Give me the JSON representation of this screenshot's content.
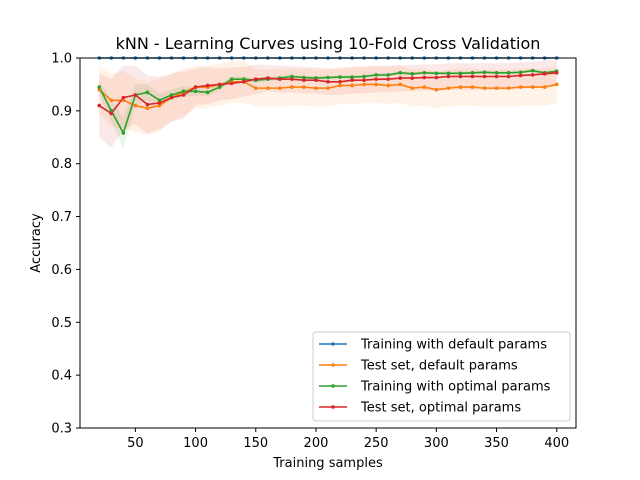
{
  "chart_data": {
    "type": "line",
    "title": "kNN - Learning Curves using 10-Fold Cross Validation",
    "xlabel": "Training samples",
    "ylabel": "Accuracy",
    "xlim": [
      4,
      416
    ],
    "ylim": [
      0.3,
      1.0
    ],
    "xticks": [
      50,
      100,
      150,
      200,
      250,
      300,
      350,
      400
    ],
    "yticks": [
      0.3,
      0.4,
      0.5,
      0.6,
      0.7,
      0.8,
      0.9,
      1.0
    ],
    "xtick_labels": [
      "50",
      "100",
      "150",
      "200",
      "250",
      "300",
      "350",
      "400"
    ],
    "ytick_labels": [
      "0.3",
      "0.4",
      "0.5",
      "0.6",
      "0.7",
      "0.8",
      "0.9",
      "1.0"
    ],
    "legend_position": "lower-right",
    "x": [
      20,
      30,
      40,
      50,
      60,
      70,
      80,
      90,
      100,
      110,
      120,
      130,
      140,
      150,
      160,
      170,
      180,
      190,
      200,
      210,
      220,
      230,
      240,
      250,
      260,
      270,
      280,
      290,
      300,
      310,
      320,
      330,
      340,
      350,
      360,
      370,
      380,
      390,
      400
    ],
    "series": [
      {
        "name": "Training with default params",
        "color": "#1f77b4",
        "values": [
          1.0,
          1.0,
          1.0,
          1.0,
          1.0,
          1.0,
          1.0,
          1.0,
          1.0,
          1.0,
          1.0,
          1.0,
          1.0,
          1.0,
          1.0,
          1.0,
          1.0,
          1.0,
          1.0,
          1.0,
          1.0,
          1.0,
          1.0,
          1.0,
          1.0,
          1.0,
          1.0,
          1.0,
          1.0,
          1.0,
          1.0,
          1.0,
          1.0,
          1.0,
          1.0,
          1.0,
          1.0,
          1.0,
          1.0
        ],
        "band": [
          0,
          0,
          0,
          0,
          0,
          0,
          0,
          0,
          0,
          0,
          0,
          0,
          0,
          0,
          0,
          0,
          0,
          0,
          0,
          0,
          0,
          0,
          0,
          0,
          0,
          0,
          0,
          0,
          0,
          0,
          0,
          0,
          0,
          0,
          0,
          0,
          0,
          0,
          0
        ]
      },
      {
        "name": "Test set, default params",
        "color": "#ff7f0e",
        "values": [
          0.94,
          0.92,
          0.92,
          0.91,
          0.905,
          0.91,
          0.925,
          0.935,
          0.945,
          0.945,
          0.95,
          0.955,
          0.955,
          0.943,
          0.943,
          0.943,
          0.945,
          0.945,
          0.943,
          0.943,
          0.948,
          0.948,
          0.95,
          0.95,
          0.948,
          0.95,
          0.943,
          0.945,
          0.94,
          0.943,
          0.945,
          0.945,
          0.943,
          0.943,
          0.943,
          0.945,
          0.945,
          0.945,
          0.95
        ],
        "band": [
          0.045,
          0.05,
          0.055,
          0.05,
          0.05,
          0.05,
          0.045,
          0.045,
          0.04,
          0.04,
          0.04,
          0.04,
          0.04,
          0.035,
          0.035,
          0.035,
          0.035,
          0.035,
          0.035,
          0.035,
          0.035,
          0.035,
          0.035,
          0.035,
          0.035,
          0.035,
          0.035,
          0.035,
          0.035,
          0.035,
          0.035,
          0.035,
          0.035,
          0.035,
          0.035,
          0.035,
          0.035,
          0.035,
          0.035
        ]
      },
      {
        "name": "Training with optimal params",
        "color": "#2ca02c",
        "values": [
          0.945,
          0.9,
          0.858,
          0.93,
          0.935,
          0.92,
          0.93,
          0.937,
          0.937,
          0.935,
          0.945,
          0.96,
          0.96,
          0.958,
          0.96,
          0.962,
          0.965,
          0.963,
          0.962,
          0.963,
          0.964,
          0.964,
          0.965,
          0.968,
          0.968,
          0.972,
          0.97,
          0.972,
          0.971,
          0.971,
          0.971,
          0.972,
          0.973,
          0.972,
          0.972,
          0.973,
          0.976,
          0.972,
          0.975
        ],
        "band": [
          0.012,
          0.02,
          0.03,
          0.02,
          0.015,
          0.012,
          0.01,
          0.01,
          0.008,
          0.008,
          0.006,
          0.005,
          0.005,
          0.005,
          0.004,
          0.004,
          0.004,
          0.004,
          0.004,
          0.003,
          0.003,
          0.003,
          0.003,
          0.003,
          0.003,
          0.003,
          0.003,
          0.003,
          0.003,
          0.003,
          0.003,
          0.003,
          0.003,
          0.003,
          0.003,
          0.003,
          0.003,
          0.003,
          0.003
        ]
      },
      {
        "name": "Test set, optimal params",
        "color": "#d62728",
        "values": [
          0.91,
          0.895,
          0.925,
          0.93,
          0.912,
          0.915,
          0.925,
          0.93,
          0.945,
          0.948,
          0.95,
          0.952,
          0.955,
          0.96,
          0.962,
          0.96,
          0.96,
          0.958,
          0.958,
          0.955,
          0.955,
          0.958,
          0.958,
          0.96,
          0.96,
          0.962,
          0.962,
          0.963,
          0.963,
          0.965,
          0.965,
          0.965,
          0.965,
          0.965,
          0.965,
          0.967,
          0.968,
          0.97,
          0.972
        ],
        "band": [
          0.06,
          0.065,
          0.06,
          0.055,
          0.055,
          0.05,
          0.045,
          0.045,
          0.035,
          0.035,
          0.03,
          0.03,
          0.028,
          0.028,
          0.025,
          0.025,
          0.025,
          0.025,
          0.025,
          0.025,
          0.025,
          0.025,
          0.025,
          0.025,
          0.025,
          0.025,
          0.025,
          0.025,
          0.025,
          0.025,
          0.025,
          0.025,
          0.025,
          0.025,
          0.025,
          0.025,
          0.025,
          0.025,
          0.025
        ]
      }
    ]
  }
}
